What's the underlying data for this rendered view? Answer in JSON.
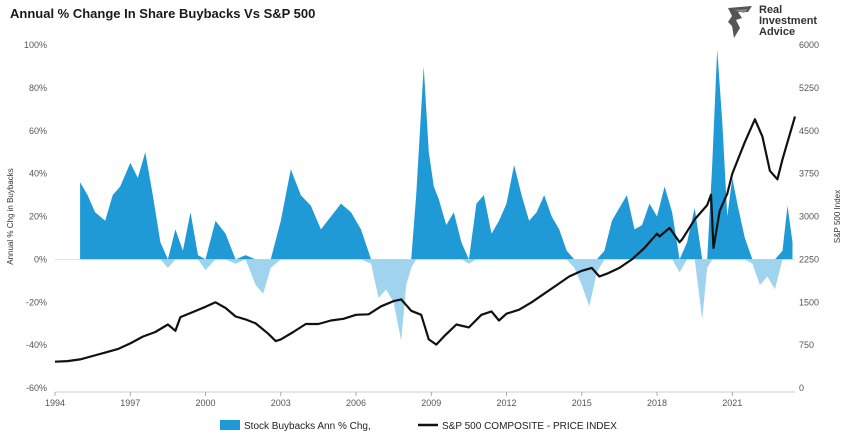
{
  "chart_data": {
    "type": "area",
    "title": "Annual % Change In Share Buybacks Vs S&P 500",
    "y_left_label": "Annual % Chg in Buybacks",
    "y_right_label": "S&P 500 Index",
    "x_ticks": [
      "1994",
      "1997",
      "2000",
      "2003",
      "2006",
      "2009",
      "2012",
      "2015",
      "2018",
      "2021"
    ],
    "y_left_ticks": [
      "100%",
      "80%",
      "60%",
      "40%",
      "20%",
      "0%",
      "-20%",
      "-40%",
      "-60%"
    ],
    "y_right_ticks": [
      "6000",
      "5250",
      "4500",
      "3750",
      "3000",
      "2250",
      "1500",
      "750",
      "0"
    ],
    "xlim": [
      1994,
      2023.5
    ],
    "ylim_left": [
      -60,
      100
    ],
    "ylim_right": [
      0,
      6000
    ],
    "grid": false,
    "legend_position": "bottom",
    "series": [
      {
        "name": "Stock Buybacks Ann % Chg,",
        "axis": "left",
        "style": "area",
        "x": [
          1995.0,
          1995.3,
          1995.6,
          1996.0,
          1996.3,
          1996.6,
          1997.0,
          1997.3,
          1997.6,
          1997.9,
          1998.2,
          1998.5,
          1998.8,
          1999.1,
          1999.4,
          1999.7,
          2000.0,
          2000.4,
          2000.8,
          2001.2,
          2001.6,
          2002.0,
          2002.3,
          2002.6,
          2003.0,
          2003.4,
          2003.8,
          2004.2,
          2004.6,
          2005.0,
          2005.4,
          2005.8,
          2006.2,
          2006.6,
          2006.9,
          2007.2,
          2007.5,
          2007.8,
          2008.0,
          2008.2,
          2008.4,
          2008.7,
          2008.9,
          2009.1,
          2009.3,
          2009.6,
          2009.9,
          2010.2,
          2010.5,
          2010.8,
          2011.1,
          2011.4,
          2011.7,
          2012.0,
          2012.3,
          2012.6,
          2012.9,
          2013.2,
          2013.5,
          2013.8,
          2014.1,
          2014.4,
          2014.7,
          2015.0,
          2015.3,
          2015.6,
          2015.9,
          2016.2,
          2016.5,
          2016.8,
          2017.1,
          2017.4,
          2017.7,
          2018.0,
          2018.3,
          2018.6,
          2018.9,
          2019.2,
          2019.5,
          2019.8,
          2020.0,
          2020.2,
          2020.4,
          2020.6,
          2020.8,
          2021.0,
          2021.2,
          2021.5,
          2021.8,
          2022.1,
          2022.4,
          2022.7,
          2023.0,
          2023.2,
          2023.4
        ],
        "values": [
          36,
          30,
          22,
          18,
          30,
          34,
          45,
          38,
          50,
          30,
          8,
          -4,
          14,
          4,
          22,
          2,
          -5,
          18,
          12,
          -2,
          2,
          -12,
          -16,
          -4,
          18,
          42,
          30,
          25,
          14,
          20,
          26,
          22,
          14,
          -2,
          -18,
          -14,
          -20,
          -38,
          -12,
          -4,
          30,
          90,
          50,
          34,
          28,
          16,
          22,
          8,
          -2,
          26,
          30,
          12,
          18,
          26,
          44,
          30,
          18,
          22,
          30,
          20,
          14,
          4,
          -4,
          -12,
          -22,
          -6,
          4,
          18,
          24,
          30,
          14,
          16,
          26,
          20,
          34,
          22,
          -6,
          8,
          24,
          -28,
          -4,
          44,
          98,
          64,
          20,
          38,
          26,
          10,
          -2,
          -12,
          -8,
          -14,
          4,
          25,
          8
        ]
      },
      {
        "name": "S&P 500 COMPOSITE - PRICE INDEX",
        "axis": "right",
        "style": "line",
        "x": [
          1994.0,
          1994.5,
          1995.0,
          1995.5,
          1996.0,
          1996.5,
          1997.0,
          1997.5,
          1998.0,
          1998.5,
          1998.8,
          1999.0,
          1999.5,
          2000.0,
          2000.4,
          2000.8,
          2001.2,
          2001.6,
          2002.0,
          2002.5,
          2002.8,
          2003.0,
          2003.5,
          2004.0,
          2004.5,
          2005.0,
          2005.5,
          2006.0,
          2006.5,
          2007.0,
          2007.5,
          2007.8,
          2008.2,
          2008.6,
          2008.9,
          2009.2,
          2009.5,
          2010.0,
          2010.5,
          2011.0,
          2011.4,
          2011.7,
          2012.0,
          2012.5,
          2013.0,
          2013.5,
          2014.0,
          2014.5,
          2015.0,
          2015.4,
          2015.7,
          2016.0,
          2016.5,
          2017.0,
          2017.5,
          2018.0,
          2018.1,
          2018.5,
          2018.9,
          2019.0,
          2019.5,
          2020.0,
          2020.15,
          2020.25,
          2020.5,
          2020.8,
          2021.0,
          2021.5,
          2021.9,
          2022.2,
          2022.5,
          2022.8,
          2023.0,
          2023.3,
          2023.5
        ],
        "values": [
          460,
          470,
          500,
          560,
          620,
          680,
          780,
          900,
          980,
          1110,
          1000,
          1240,
          1330,
          1420,
          1500,
          1400,
          1250,
          1200,
          1130,
          950,
          820,
          850,
          980,
          1120,
          1120,
          1180,
          1210,
          1280,
          1290,
          1430,
          1520,
          1550,
          1350,
          1280,
          850,
          760,
          900,
          1110,
          1060,
          1280,
          1340,
          1180,
          1300,
          1370,
          1500,
          1650,
          1800,
          1950,
          2050,
          2100,
          1950,
          2000,
          2100,
          2250,
          2450,
          2700,
          2650,
          2800,
          2550,
          2600,
          2950,
          3200,
          3380,
          2450,
          3100,
          3400,
          3750,
          4300,
          4700,
          4400,
          3800,
          3650,
          4000,
          4450,
          4750
        ]
      }
    ]
  },
  "colors": {
    "area_positive": "#1f9ad6",
    "area_negative": "#9fd3ee",
    "line": "#111111"
  },
  "logo": {
    "line1": "Real",
    "line2": "Investment",
    "line3": "Advice",
    "icon": "eagle-icon"
  },
  "legend": {
    "area_label": "Stock Buybacks Ann % Chg,",
    "line_label": "S&P 500 COMPOSITE - PRICE INDEX"
  }
}
